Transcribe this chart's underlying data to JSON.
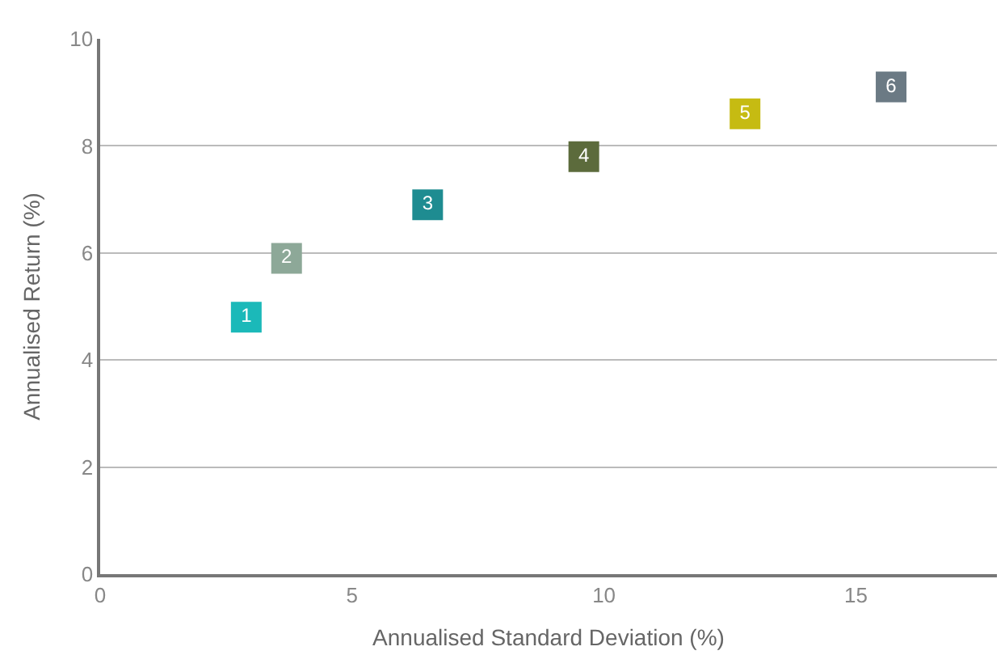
{
  "chart_data": {
    "type": "scatter",
    "xlabel": "Annualised Standard Deviation (%)",
    "ylabel": "Annualised Return (%)",
    "xlim": [
      0,
      17.8
    ],
    "xticks": [
      0,
      5,
      10,
      15
    ],
    "ylim": [
      0,
      10
    ],
    "yticks": [
      0,
      2,
      4,
      6,
      8,
      10
    ],
    "grid": "y",
    "marker": "square",
    "legend": false,
    "series": [
      {
        "name": "1",
        "color": "#1bb9b9",
        "x": [
          2.9
        ],
        "values": [
          4.8
        ]
      },
      {
        "name": "2",
        "color": "#8da898",
        "x": [
          3.7
        ],
        "values": [
          5.9
        ]
      },
      {
        "name": "3",
        "color": "#1e8c91",
        "x": [
          6.5
        ],
        "values": [
          6.9
        ]
      },
      {
        "name": "4",
        "color": "#5c6b3c",
        "x": [
          9.6
        ],
        "values": [
          7.8
        ]
      },
      {
        "name": "5",
        "color": "#c6bb12",
        "x": [
          12.8
        ],
        "values": [
          8.6
        ]
      },
      {
        "name": "6",
        "color": "#6b7a84",
        "x": [
          15.7
        ],
        "values": [
          9.1
        ]
      }
    ]
  }
}
